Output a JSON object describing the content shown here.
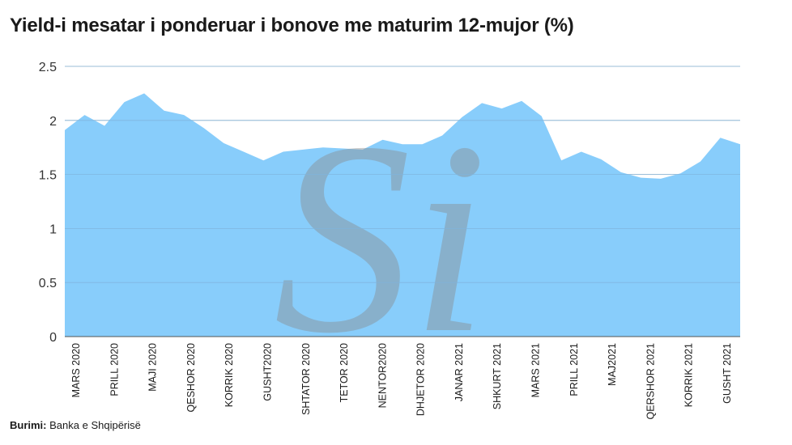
{
  "chart_data": {
    "type": "area",
    "title": "Yield-i mesatar i ponderuar i bonove me maturim 12-mujor (%)",
    "xlabel": "",
    "ylabel": "",
    "ylim": [
      0,
      2.5
    ],
    "yticks": [
      "0",
      "0.5",
      "1",
      "1.5",
      "2",
      "2.5"
    ],
    "grid": true,
    "color": "#88cdfb",
    "x_tick_labels": [
      "MARS 2020",
      "PRILL 2020",
      "MAJI 2020",
      "QESHOR 2020",
      "KORRIK 2020",
      "GUSHT2020",
      "SHTATOR 2020",
      "TETOR 2020",
      "NENTOR2020",
      "DHJETOR 2020",
      "JANAR 2021",
      "SHKURT 2021",
      "MARS 2021",
      "PRILL 2021",
      "MAJ2021",
      "QERSHOR 2021",
      "KORRIK 2021",
      "GUSHT 2021"
    ],
    "values": [
      1.91,
      2.05,
      1.95,
      2.17,
      2.25,
      2.09,
      2.05,
      1.93,
      1.79,
      1.71,
      1.63,
      1.71,
      1.73,
      1.75,
      1.74,
      1.73,
      1.82,
      1.78,
      1.78,
      1.86,
      2.03,
      2.16,
      2.11,
      2.18,
      2.04,
      1.63,
      1.71,
      1.64,
      1.52,
      1.47,
      1.46,
      1.51,
      1.62,
      1.84,
      1.78
    ]
  },
  "source": {
    "label": "Burimi:",
    "text": "Banka e Shqipërisë"
  },
  "watermark": {
    "text": "Si",
    "color": "#8a8a8a"
  }
}
